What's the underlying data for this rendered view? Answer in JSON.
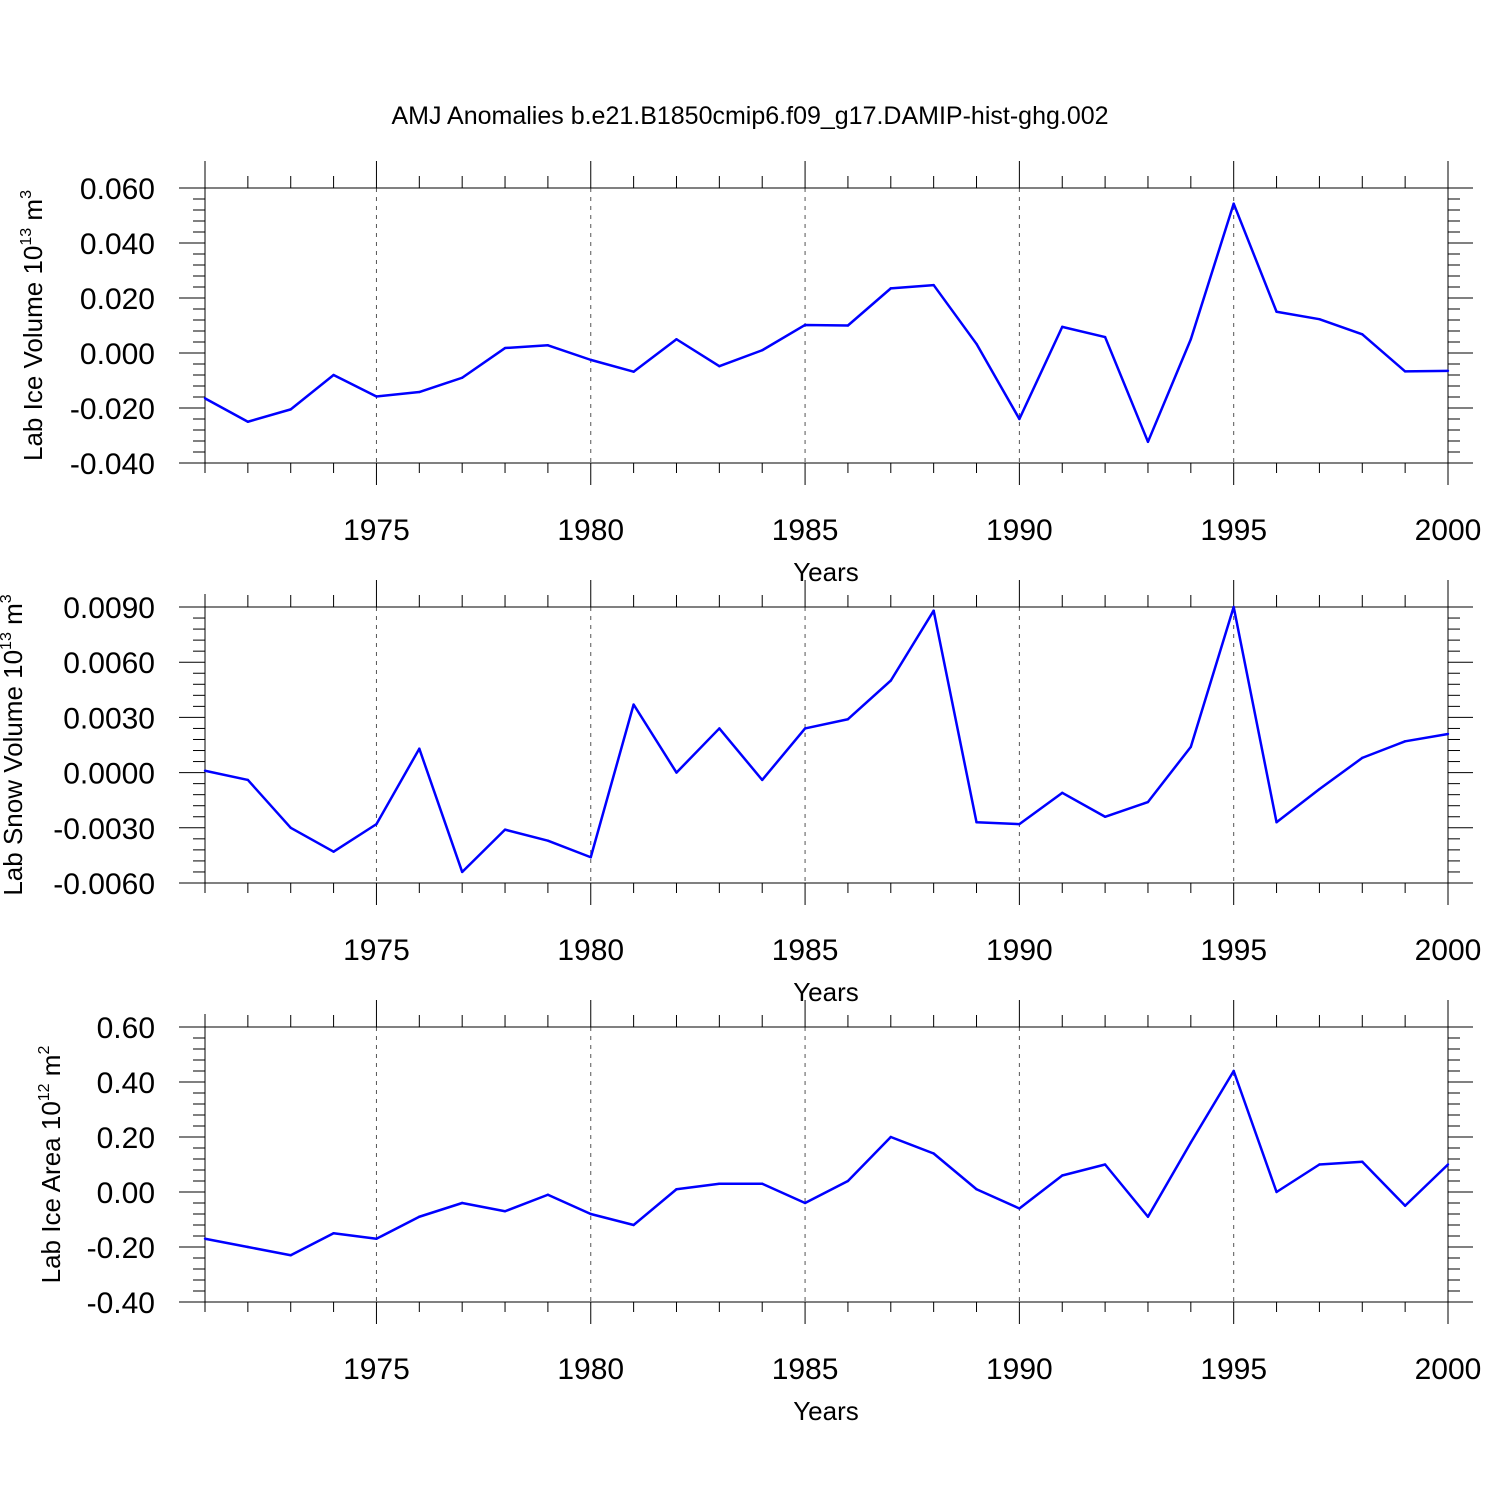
{
  "title": "AMJ Anomalies b.e21.B1850cmip6.f09_g17.DAMIP-hist-ghg.002",
  "line_color": "#0000ff",
  "chart_data": [
    {
      "type": "line",
      "xlabel": "Years",
      "ylabel": {
        "text": "Lab Ice Volume 10",
        "exponent": "13",
        "unit": " m",
        "unit_exponent": "3"
      },
      "xlim": [
        1971,
        2000
      ],
      "ylim": [
        -0.04,
        0.06
      ],
      "x_ticks": [
        1975,
        1980,
        1985,
        1990,
        1995,
        2000
      ],
      "y_ticks": [
        -0.04,
        -0.02,
        0.0,
        0.02,
        0.04,
        0.06
      ],
      "y_tick_labels": [
        "-0.040",
        "-0.020",
        "0.000",
        "0.020",
        "0.040",
        "0.060"
      ],
      "grid": "vertical dashed at major x ticks",
      "x": [
        1971,
        1972,
        1973,
        1974,
        1975,
        1976,
        1977,
        1978,
        1979,
        1980,
        1981,
        1982,
        1983,
        1984,
        1985,
        1986,
        1987,
        1988,
        1989,
        1990,
        1991,
        1992,
        1993,
        1994,
        1995,
        1996,
        1997,
        1998,
        1999,
        2000
      ],
      "series": [
        {
          "values": [
            -0.0165,
            -0.025,
            -0.0205,
            -0.008,
            -0.0158,
            -0.0142,
            -0.009,
            0.0018,
            0.0028,
            -0.0025,
            -0.0068,
            0.005,
            -0.0048,
            0.001,
            0.0102,
            0.01,
            0.0235,
            0.0247,
            0.0033,
            -0.024,
            0.0095,
            0.0058,
            -0.0323,
            0.005,
            0.0543,
            0.015,
            0.0123,
            0.0068,
            -0.0067,
            -0.0065
          ]
        }
      ]
    },
    {
      "type": "line",
      "xlabel": "Years",
      "ylabel": {
        "text": "Lab Snow Volume 10",
        "exponent": "13",
        "unit": " m",
        "unit_exponent": "3"
      },
      "xlim": [
        1971,
        2000
      ],
      "ylim": [
        -0.006,
        0.009
      ],
      "x_ticks": [
        1975,
        1980,
        1985,
        1990,
        1995,
        2000
      ],
      "y_ticks": [
        -0.006,
        -0.003,
        0.0,
        0.003,
        0.006,
        0.009
      ],
      "y_tick_labels": [
        "-0.0060",
        "-0.0030",
        "0.0000",
        "0.0030",
        "0.0060",
        "0.0090"
      ],
      "grid": "vertical dashed at major x ticks",
      "x": [
        1971,
        1972,
        1973,
        1974,
        1975,
        1976,
        1977,
        1978,
        1979,
        1980,
        1981,
        1982,
        1983,
        1984,
        1985,
        1986,
        1987,
        1988,
        1989,
        1990,
        1991,
        1992,
        1993,
        1994,
        1995,
        1996,
        1997,
        1998,
        1999,
        2000
      ],
      "series": [
        {
          "values": [
            0.0001,
            -0.0004,
            -0.003,
            -0.0043,
            -0.0028,
            0.0013,
            -0.0054,
            -0.0031,
            -0.0037,
            -0.0046,
            0.0037,
            0.0,
            0.0024,
            -0.0004,
            0.0024,
            0.0029,
            0.005,
            0.0088,
            -0.0027,
            -0.0028,
            -0.0011,
            -0.0024,
            -0.0016,
            0.0014,
            0.009,
            -0.0027,
            -0.0009,
            0.0008,
            0.0017,
            0.0021
          ]
        }
      ]
    },
    {
      "type": "line",
      "xlabel": "Years",
      "ylabel": {
        "text": "Lab Ice Area 10",
        "exponent": "12",
        "unit": " m",
        "unit_exponent": "2"
      },
      "xlim": [
        1971,
        2000
      ],
      "ylim": [
        -0.4,
        0.6
      ],
      "x_ticks": [
        1975,
        1980,
        1985,
        1990,
        1995,
        2000
      ],
      "y_ticks": [
        -0.4,
        -0.2,
        0.0,
        0.2,
        0.4,
        0.6
      ],
      "y_tick_labels": [
        "-0.40",
        "-0.20",
        "0.00",
        "0.20",
        "0.40",
        "0.60"
      ],
      "grid": "vertical dashed at major x ticks",
      "x": [
        1971,
        1972,
        1973,
        1974,
        1975,
        1976,
        1977,
        1978,
        1979,
        1980,
        1981,
        1982,
        1983,
        1984,
        1985,
        1986,
        1987,
        1988,
        1989,
        1990,
        1991,
        1992,
        1993,
        1994,
        1995,
        1996,
        1997,
        1998,
        1999,
        2000
      ],
      "series": [
        {
          "values": [
            -0.17,
            -0.2,
            -0.23,
            -0.15,
            -0.17,
            -0.09,
            -0.04,
            -0.07,
            -0.01,
            -0.08,
            -0.12,
            0.01,
            0.03,
            0.03,
            -0.04,
            0.04,
            0.2,
            0.14,
            0.01,
            -0.06,
            0.06,
            0.1,
            -0.09,
            0.18,
            0.44,
            0.0,
            0.1,
            0.11,
            -0.05,
            0.1
          ]
        }
      ]
    }
  ]
}
